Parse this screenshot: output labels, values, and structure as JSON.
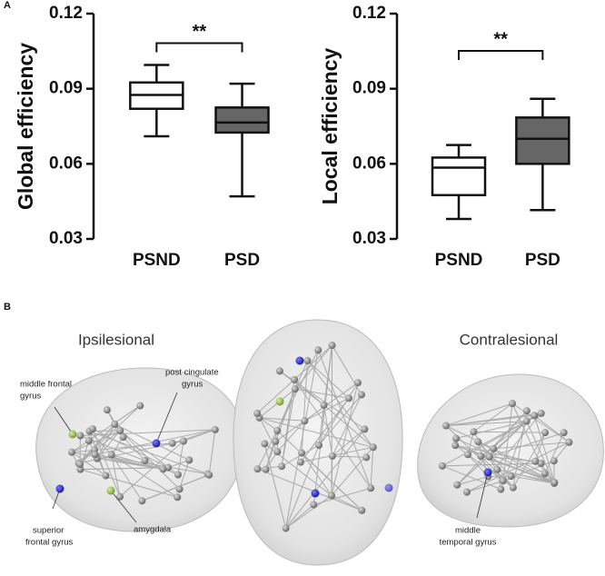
{
  "panel_a_label": "A",
  "chart_data": [
    {
      "type": "box",
      "y_label": "Global efficiency",
      "categories": [
        "PSND",
        "PSD"
      ],
      "colors": [
        "#ffffff",
        "#666666"
      ],
      "min": [
        0.071,
        0.047
      ],
      "q1": [
        0.082,
        0.0725
      ],
      "median": [
        0.0875,
        0.0765
      ],
      "q3": [
        0.0925,
        0.0825
      ],
      "max": [
        0.0995,
        0.092
      ],
      "ylim": [
        0.03,
        0.12
      ],
      "yticks": [
        0.03,
        0.06,
        0.09,
        0.12
      ],
      "annotation": "**"
    },
    {
      "type": "box",
      "y_label": "Local efficiency",
      "categories": [
        "PSND",
        "PSD"
      ],
      "colors": [
        "#ffffff",
        "#666666"
      ],
      "min": [
        0.038,
        0.0415
      ],
      "q1": [
        0.0475,
        0.06
      ],
      "median": [
        0.0585,
        0.07
      ],
      "q3": [
        0.0625,
        0.0785
      ],
      "max": [
        0.0675,
        0.086
      ],
      "ylim": [
        0.03,
        0.12
      ],
      "yticks": [
        0.03,
        0.06,
        0.09,
        0.12
      ],
      "annotation": "**"
    }
  ],
  "panel_b": {
    "label": "B",
    "left_title": "Ipsilesional",
    "right_title": "Contralesional",
    "regions": [
      {
        "lines": [
          "middle frontal",
          "gyrus"
        ]
      },
      {
        "lines": [
          "post cingulate",
          "gyrus"
        ]
      },
      {
        "lines": [
          "superior",
          "frontal gyrus"
        ]
      },
      {
        "lines": [
          "amygdala"
        ]
      },
      {
        "lines": [
          "middle",
          "temporal gyrus"
        ]
      }
    ]
  }
}
